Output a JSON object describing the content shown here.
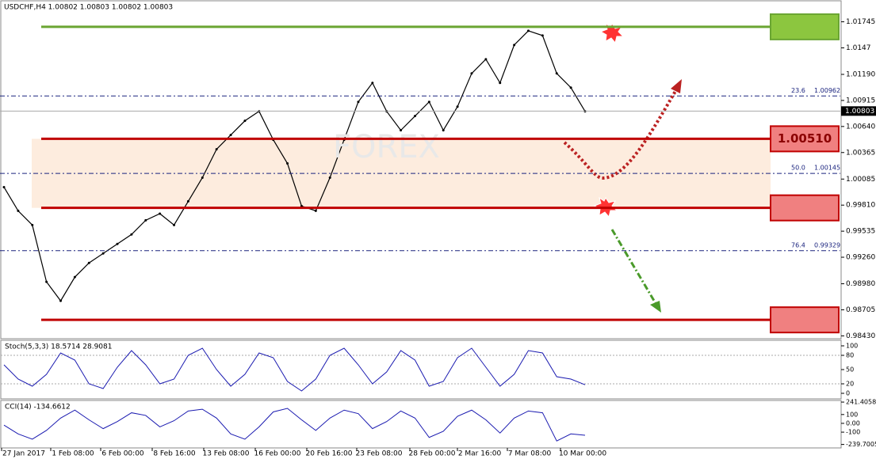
{
  "chart_data": {
    "type": "line",
    "title": "USDCHF,H4  1.00802 1.00803 1.00802 1.00803",
    "x_labels": [
      "27 Jan 2017",
      "1 Feb 08:00",
      "6 Feb 00:00",
      "8 Feb 16:00",
      "13 Feb 08:00",
      "16 Feb 00:00",
      "20 Feb 16:00",
      "23 Feb 08:00",
      "28 Feb 00:00",
      "2 Mar 16:00",
      "7 Mar 08:00",
      "10 Mar 00:00"
    ],
    "values": [
      1.0,
      0.9975,
      0.996,
      0.99,
      0.988,
      0.9905,
      0.992,
      0.993,
      0.994,
      0.995,
      0.9965,
      0.9972,
      0.996,
      0.9985,
      1.001,
      1.004,
      1.0055,
      1.007,
      1.008,
      1.005,
      1.0025,
      0.998,
      0.9975,
      1.001,
      1.005,
      1.009,
      1.011,
      1.008,
      1.006,
      1.0075,
      1.009,
      1.006,
      1.0085,
      1.012,
      1.0135,
      1.011,
      1.015,
      1.0165,
      1.016,
      1.012,
      1.0105,
      1.008
    ],
    "color": "#000000",
    "ylim": [
      0.984,
      1.0195
    ],
    "yticks": [
      1.01745,
      1.0147,
      {
        "value": 1.0119,
        "label": "1.01190"
      },
      1.00915,
      {
        "value": 1.0064,
        "label": "1.00640"
      },
      1.00365,
      1.00085,
      {
        "value": 0.9981,
        "label": "0.99810"
      },
      0.99535,
      {
        "value": 0.9926,
        "label": "0.99260"
      },
      {
        "value": 0.9898,
        "label": "0.98980"
      },
      0.98705,
      {
        "value": 0.9843,
        "label": "0.98430"
      }
    ],
    "current_price": 1.00803,
    "levels": [
      {
        "value": 1.01692,
        "color": "#6aa532",
        "box": "#8cc63f"
      },
      {
        "value": 1.0051,
        "label": "1.00510",
        "color": "#c00000",
        "box": "#f08080"
      },
      {
        "value": 0.99781,
        "color": "#c00000",
        "box": "#f08080"
      },
      {
        "value": 0.98599,
        "color": "#c00000",
        "box": "#f08080"
      }
    ],
    "fibonacci": [
      {
        "level": "23.6",
        "value": 1.00962
      },
      {
        "level": "50.0",
        "value": 1.00145
      },
      {
        "level": "76.4",
        "value": 0.99329
      }
    ],
    "stochastic": {
      "label": "Stoch(5,3,3) 18.5714 28.9081",
      "values": [
        60,
        30,
        15,
        40,
        85,
        70,
        20,
        10,
        55,
        90,
        60,
        20,
        30,
        80,
        95,
        50,
        15,
        40,
        85,
        75,
        25,
        5,
        30,
        80,
        95,
        60,
        20,
        45,
        90,
        70,
        15,
        25,
        75,
        95,
        55,
        15,
        40,
        90,
        85,
        35,
        30,
        18
      ],
      "ylim": [
        0,
        100
      ],
      "yticks": [
        100,
        80,
        50,
        20,
        0
      ]
    },
    "cci": {
      "label": "CCI(14) -134.6612",
      "values": [
        -20,
        -120,
        -180,
        -80,
        60,
        150,
        40,
        -60,
        20,
        120,
        90,
        -40,
        30,
        140,
        160,
        60,
        -120,
        -180,
        -40,
        130,
        170,
        40,
        -80,
        60,
        150,
        110,
        -60,
        20,
        140,
        60,
        -160,
        -90,
        80,
        150,
        40,
        -110,
        60,
        140,
        120,
        -200,
        -120,
        -135
      ],
      "ylim": [
        -270,
        260
      ],
      "yticks": [
        241.4058,
        100,
        {
          "value": 0,
          "label": "0.00"
        },
        -100,
        -239.7005
      ]
    }
  }
}
